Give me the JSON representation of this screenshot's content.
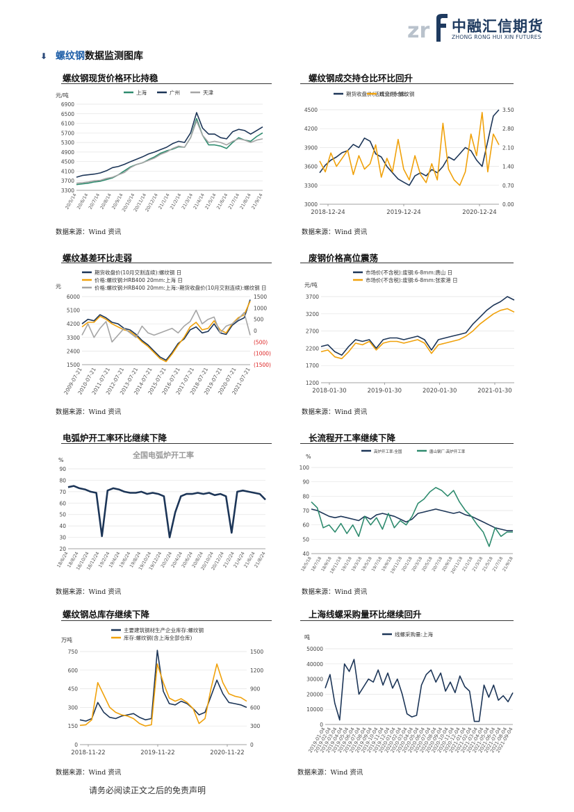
{
  "logo": {
    "cn": "中融汇信期货",
    "en": "ZHONG RONG HUI XIN FUTURES"
  },
  "section": {
    "highlight": "螺纹钢",
    "rest": "数据监测图库"
  },
  "panels": [
    {
      "title": "螺纹钢现货价格环比持稳",
      "source": "数据来源：Wind 资讯"
    },
    {
      "title": "螺纹钢成交持仓比环比回升",
      "source": "数据来源：Wind 资讯"
    },
    {
      "title": "螺纹基差环比走弱",
      "source": "数据来源：Wind 资讯"
    },
    {
      "title": "废钢价格高位震荡",
      "source": "数据来源：Wind 资讯"
    },
    {
      "title": "电弧炉开工率环比继续下降",
      "source": "数据来源：Wind 资讯"
    },
    {
      "title": "长流程开工率继续下降",
      "source": "数据来源：Wind 资讯"
    },
    {
      "title": "螺纹钢总库存继续下降",
      "source": "数据来源：Wind 资讯"
    },
    {
      "title": "上海线螺采购量环比继续回升",
      "source": "数据来源：Wind 资讯"
    }
  ],
  "footer": "请务必阅读正文之后的免责声明",
  "colors": {
    "navy": "#1c3557",
    "teal": "#2e8b6e",
    "gray": "#a5a5a5",
    "orange": "#f0a10a"
  },
  "chart_data": [
    {
      "type": "line",
      "unit": "元/吨",
      "ylim": [
        3300,
        6900
      ],
      "yticks": [
        "6900",
        "6500",
        "6100",
        "5700",
        "5300",
        "4900",
        "4500",
        "4100",
        "3700",
        "3300"
      ],
      "xticks": [
        "20/5/14",
        "20/6/14",
        "20/7/14",
        "20/8/14",
        "20/9/14",
        "20/10/14",
        "20/11/14",
        "20/12/14",
        "21/1/14",
        "21/2/14",
        "21/3/14",
        "21/4/14",
        "21/5/14",
        "21/6/14",
        "21/7/14",
        "21/8/14",
        "21/9/14"
      ],
      "series": [
        {
          "name": "上海",
          "color": "#2e8b6e",
          "values": [
            3540,
            3570,
            3600,
            3650,
            3680,
            3750,
            3820,
            3950,
            4120,
            4280,
            4380,
            4450,
            4580,
            4700,
            4850,
            4950,
            5020,
            5120,
            5100,
            5500,
            6300,
            5600,
            5200,
            5200,
            5150,
            5050,
            5300,
            5500,
            5400,
            5350,
            5550,
            5700
          ]
        },
        {
          "name": "广州",
          "color": "#1c3557",
          "values": [
            3850,
            3920,
            3950,
            3980,
            4030,
            4120,
            4250,
            4300,
            4390,
            4500,
            4600,
            4700,
            4820,
            4900,
            5000,
            5100,
            5250,
            5350,
            5300,
            5700,
            6550,
            5900,
            5650,
            5650,
            5500,
            5450,
            5750,
            5850,
            5800,
            5650,
            5800,
            5950
          ]
        },
        {
          "name": "天津",
          "color": "#a5a5a5",
          "values": [
            3600,
            3620,
            3650,
            3700,
            3720,
            3800,
            3850,
            3950,
            4050,
            4250,
            4380,
            4450,
            4550,
            4650,
            4800,
            4900,
            5050,
            5150,
            5100,
            5500,
            6200,
            5600,
            5300,
            5350,
            5300,
            5200,
            5350,
            5450,
            5400,
            5300,
            5400,
            5450
          ]
        }
      ]
    },
    {
      "type": "line",
      "ylim": [
        3000,
        4500
      ],
      "y2lim": [
        0,
        3.5
      ],
      "yticks": [
        "4500",
        "4200",
        "3900",
        "3600",
        "3300",
        "3000"
      ],
      "y2ticks": [
        "3.50",
        "2.80",
        "2.10",
        "1.40",
        "0.70",
        "0.00"
      ],
      "xticks": [
        "2018-12-24",
        "2019-12-24",
        "2020-12-24"
      ],
      "series": [
        {
          "name": "期货收盘价(活跃合约):螺纹钢",
          "color": "#1c3557",
          "values": [
            3500,
            3620,
            3700,
            3750,
            3820,
            3850,
            3950,
            3900,
            4050,
            4000,
            3800,
            3750,
            3600,
            3500,
            3400,
            3350,
            3300,
            3450,
            3500,
            3450,
            3550,
            3500,
            3600,
            3750,
            3700,
            3800,
            3900,
            3850,
            3700,
            3600,
            4000,
            4400,
            4500
          ]
        },
        {
          "name": "成交/持仓比",
          "color": "#f0a10a",
          "axis": "right",
          "values": [
            1.6,
            1.2,
            1.9,
            1.4,
            1.7,
            2.0,
            1.1,
            1.8,
            1.3,
            1.5,
            2.2,
            1.0,
            1.7,
            1.2,
            2.4,
            1.3,
            0.9,
            1.8,
            1.1,
            0.8,
            1.5,
            0.9,
            3.0,
            1.3,
            0.9,
            0.7,
            1.2,
            2.6,
            1.8,
            3.4,
            1.2,
            2.6,
            2.2
          ]
        }
      ]
    },
    {
      "type": "line",
      "unit": "元",
      "ylim": [
        1500,
        6000
      ],
      "y2lim": [
        -1500,
        1500
      ],
      "yticks": [
        "6000",
        "5100",
        "4200",
        "3300",
        "2400",
        "1500"
      ],
      "y2ticks": [
        "1500",
        "1000",
        "500",
        "0",
        "(500)",
        "(1000)",
        "(1500)"
      ],
      "xticks": [
        "2009-07-21",
        "2010-07-21",
        "2011-07-21",
        "2012-07-21",
        "2013-07-21",
        "2014-07-21",
        "2015-07-21",
        "2016-07-21",
        "2017-07-21",
        "2018-07-21",
        "2019-07-21",
        "2020-07-21",
        "2021-07-21"
      ],
      "series": [
        {
          "name": "期货收盘价(10月交割连续):螺纹钢 日",
          "color": "#1c3557",
          "values": [
            4200,
            4500,
            4400,
            4800,
            4600,
            4300,
            4200,
            3900,
            3800,
            3500,
            3100,
            2800,
            2400,
            2000,
            1800,
            2300,
            2900,
            3200,
            3800,
            4000,
            3600,
            3700,
            4200,
            3600,
            3500,
            4100,
            4400,
            4600,
            5800
          ]
        },
        {
          "name": "价格:螺纹钢:HRB400 20mm:上海 日",
          "color": "#f0a10a",
          "values": [
            4000,
            4300,
            4300,
            4700,
            4500,
            4200,
            4000,
            3800,
            3700,
            3400,
            3000,
            2700,
            2300,
            1900,
            1700,
            2200,
            2800,
            3300,
            4000,
            4300,
            3800,
            3900,
            4400,
            3800,
            3600,
            4200,
            4600,
            4800,
            5700
          ]
        },
        {
          "name": "价格:螺纹钢:HRB400 20mm:上海:-期货收盘价(10月交割连续):螺纹钢 日",
          "color": "#a5a5a5",
          "axis": "right",
          "values": [
            -200,
            300,
            -300,
            100,
            400,
            -500,
            -200,
            100,
            -100,
            -300,
            200,
            -100,
            -200,
            -100,
            0,
            100,
            -100,
            200,
            400,
            900,
            300,
            500,
            600,
            -100,
            200,
            300,
            500,
            800,
            -200
          ]
        }
      ]
    },
    {
      "type": "line",
      "unit": "元/吨",
      "ylim": [
        1200,
        3700
      ],
      "yticks": [
        "3700",
        "3200",
        "2700",
        "2200",
        "1700",
        "1200"
      ],
      "xticks": [
        "2018-01-30",
        "2019-01-30",
        "2020-01-30",
        "2021-01-30"
      ],
      "series": [
        {
          "name": "市场价(不含税):废钢:6-8mm:唐山 日",
          "color": "#1c3557",
          "values": [
            2250,
            2300,
            2100,
            2000,
            2250,
            2450,
            2400,
            2450,
            2200,
            2450,
            2500,
            2500,
            2450,
            2500,
            2550,
            2450,
            2150,
            2450,
            2500,
            2550,
            2600,
            2650,
            2900,
            3100,
            3300,
            3450,
            3550,
            3700,
            3600
          ]
        },
        {
          "name": "市场价(不含税):废钢:6-8mm:张家港 日",
          "color": "#f0a10a",
          "values": [
            2100,
            2150,
            1950,
            1900,
            2100,
            2350,
            2300,
            2400,
            2150,
            2350,
            2400,
            2400,
            2350,
            2400,
            2450,
            2350,
            2050,
            2300,
            2350,
            2400,
            2450,
            2550,
            2700,
            2900,
            3050,
            3200,
            3300,
            3350,
            3250
          ]
        }
      ]
    },
    {
      "type": "line",
      "unit": "%",
      "title": "全国电弧炉开工率",
      "ylim": [
        20,
        90
      ],
      "yticks": [
        "90",
        "80",
        "70",
        "60",
        "50",
        "40",
        "30",
        "20"
      ],
      "xticks": [
        "18/6/24",
        "18/8/24",
        "18/10/24",
        "18/12/24",
        "19/2/24",
        "19/4/24",
        "19/6/24",
        "19/8/24",
        "19/10/24",
        "19/12/24",
        "20/2/24",
        "20/4/24",
        "20/6/24",
        "20/8/24",
        "20/10/24",
        "20/12/24",
        "21/2/24",
        "21/4/24",
        "21/6/24",
        "21/8/24"
      ],
      "series": [
        {
          "name": "电弧炉开工率",
          "color": "#1c3557",
          "values": [
            74,
            75,
            73,
            72,
            70,
            69,
            31,
            71,
            73,
            72,
            70,
            69,
            69,
            70,
            68,
            69,
            68,
            66,
            30,
            52,
            66,
            68,
            68,
            69,
            68,
            69,
            67,
            68,
            66,
            34,
            70,
            71,
            70,
            69,
            68,
            63
          ]
        }
      ]
    },
    {
      "type": "line",
      "unit": "%",
      "ylim": [
        40,
        100
      ],
      "yticks": [
        "100",
        "90",
        "80",
        "70",
        "60",
        "50",
        "40"
      ],
      "xticks": [
        "18/5/18",
        "18/7/18",
        "18/9/18",
        "18/11/18",
        "19/1/18",
        "19/3/18",
        "19/5/18",
        "19/7/18",
        "19/9/18",
        "19/11/18",
        "20/1/18",
        "20/3/18",
        "20/5/18",
        "20/7/18",
        "20/9/18",
        "20/11/18",
        "21/1/18",
        "21/3/18",
        "21/5/18",
        "21/7/18",
        "21/9/18"
      ],
      "series": [
        {
          "name": "高炉开工率:全国",
          "color": "#1c3557",
          "values": [
            71,
            70,
            68,
            66,
            65,
            66,
            65,
            64,
            63,
            66,
            64,
            67,
            68,
            67,
            66,
            64,
            62,
            64,
            68,
            69,
            70,
            71,
            70,
            69,
            68,
            69,
            67,
            66,
            64,
            62,
            60,
            58,
            57,
            56,
            56
          ]
        },
        {
          "name": "唐山钢厂:高炉开工率",
          "color": "#2e8b6e",
          "values": [
            76,
            72,
            58,
            60,
            55,
            61,
            54,
            60,
            52,
            66,
            60,
            65,
            57,
            68,
            58,
            63,
            60,
            66,
            75,
            78,
            83,
            86,
            84,
            80,
            84,
            76,
            70,
            66,
            60,
            55,
            45,
            58,
            52,
            55,
            55
          ]
        }
      ]
    },
    {
      "type": "line",
      "unit": "万吨",
      "ylim": [
        0,
        750
      ],
      "y2lim": [
        0,
        1500
      ],
      "yticks": [
        "750",
        "600",
        "450",
        "300",
        "150",
        "0"
      ],
      "y2ticks": [
        "1500",
        "1200",
        "900",
        "600",
        "300",
        "0"
      ],
      "xticks": [
        "2018-11-22",
        "2019-11-22",
        "2020-11-22"
      ],
      "series": [
        {
          "name": "主要建筑钢材生产企业库存:螺纹钢",
          "color": "#1c3557",
          "values": [
            200,
            190,
            210,
            340,
            260,
            220,
            210,
            230,
            240,
            250,
            220,
            200,
            210,
            760,
            430,
            330,
            320,
            350,
            330,
            290,
            240,
            260,
            390,
            520,
            410,
            340,
            330,
            320,
            300
          ]
        },
        {
          "name": "库存:螺纹钢(含上海全部仓库)",
          "color": "#f0a10a",
          "axis": "right",
          "values": [
            310,
            320,
            400,
            1000,
            800,
            600,
            520,
            480,
            460,
            420,
            340,
            300,
            320,
            1300,
            1000,
            750,
            700,
            740,
            680,
            580,
            340,
            420,
            900,
            1300,
            1000,
            820,
            780,
            760,
            700
          ]
        }
      ]
    },
    {
      "type": "line",
      "unit": "吨",
      "ylim": [
        0,
        50000
      ],
      "yticks": [
        "50000",
        "40000",
        "30000",
        "20000",
        "10000",
        "0"
      ],
      "xticks": [
        "2019-01-04",
        "2019-02-04",
        "2019-03-04",
        "2019-04-04",
        "2019-05-04",
        "2019-06-04",
        "2019-07-04",
        "2019-08-04",
        "2019-09-04",
        "2019-10-04",
        "2019-11-04",
        "2019-12-04",
        "2020-01-04",
        "2020-02-04",
        "2020-03-04",
        "2020-04-04",
        "2020-05-04",
        "2020-06-04",
        "2020-07-04",
        "2020-08-04",
        "2020-09-04",
        "2020-10-04",
        "2020-11-04",
        "2020-12-04",
        "2021-01-04",
        "2021-02-04",
        "2021-03-04",
        "2021-04-04",
        "2021-05-04",
        "2021-06-04",
        "2021-07-04",
        "2021-08-04",
        "2021-09-04"
      ],
      "series": [
        {
          "name": "线螺采购量:上海",
          "color": "#1c3557",
          "values": [
            24000,
            33000,
            14000,
            3000,
            40000,
            35000,
            43000,
            20000,
            25000,
            30000,
            28000,
            36000,
            26000,
            34000,
            24000,
            30000,
            20000,
            7000,
            5000,
            6000,
            26000,
            33000,
            36000,
            28000,
            34000,
            22000,
            28000,
            21000,
            32000,
            25000,
            22000,
            2000,
            2000,
            26000,
            18000,
            26000,
            16000,
            19000,
            15000,
            21000
          ]
        }
      ]
    }
  ]
}
